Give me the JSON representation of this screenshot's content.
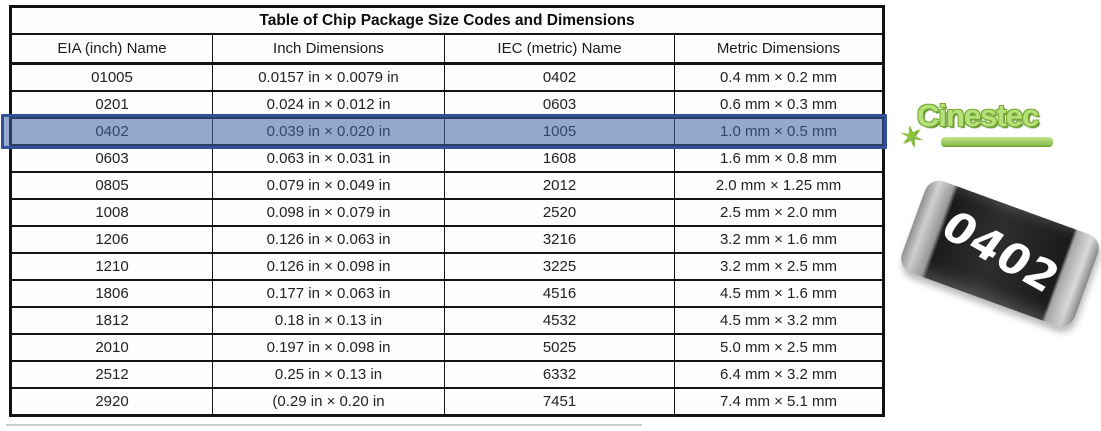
{
  "table": {
    "title": "Table of Chip Package Size Codes and Dimensions",
    "columns": [
      "EIA (inch) Name",
      "Inch Dimensions",
      "IEC (metric) Name",
      "Metric Dimensions"
    ],
    "rows": [
      {
        "eia": "01005",
        "inch": "0.0157 in × 0.0079 in",
        "iec": "0402",
        "metric": "0.4 mm × 0.2 mm"
      },
      {
        "eia": "0201",
        "inch": "0.024 in × 0.012 in",
        "iec": "0603",
        "metric": "0.6 mm × 0.3 mm"
      },
      {
        "eia": "0402",
        "inch": "0.039 in × 0.020 in",
        "iec": "1005",
        "metric": "1.0 mm × 0.5 mm"
      },
      {
        "eia": "0603",
        "inch": "0.063 in × 0.031 in",
        "iec": "1608",
        "metric": "1.6 mm × 0.8 mm"
      },
      {
        "eia": "0805",
        "inch": "0.079 in × 0.049 in",
        "iec": "2012",
        "metric": "2.0 mm × 1.25 mm"
      },
      {
        "eia": "1008",
        "inch": "0.098 in × 0.079 in",
        "iec": "2520",
        "metric": "2.5 mm × 2.0 mm"
      },
      {
        "eia": "1206",
        "inch": "0.126 in × 0.063 in",
        "iec": "3216",
        "metric": "3.2 mm × 1.6 mm"
      },
      {
        "eia": "1210",
        "inch": "0.126 in × 0.098 in",
        "iec": "3225",
        "metric": "3.2 mm × 2.5 mm"
      },
      {
        "eia": "1806",
        "inch": "0.177 in × 0.063 in",
        "iec": "4516",
        "metric": "4.5 mm × 1.6 mm"
      },
      {
        "eia": "1812",
        "inch": "0.18 in × 0.13 in",
        "iec": "4532",
        "metric": "4.5 mm × 3.2 mm"
      },
      {
        "eia": "2010",
        "inch": "0.197 in × 0.098 in",
        "iec": "5025",
        "metric": "5.0 mm × 2.5 mm"
      },
      {
        "eia": "2512",
        "inch": "0.25 in × 0.13 in",
        "iec": "6332",
        "metric": "6.4 mm × 3.2 mm"
      },
      {
        "eia": "2920",
        "inch": "(0.29 in × 0.20 in",
        "iec": "7451",
        "metric": "7.4 mm × 5.1 mm"
      }
    ],
    "highlighted_row": "0402"
  },
  "highlight": {
    "fill": "rgba(62,98,168,0.55)",
    "border_color": "#33519a"
  },
  "logo": {
    "text": "Cinestec",
    "leaf_glyph": "✶",
    "color": "#8cc63f"
  },
  "chip": {
    "label": "0402",
    "body_color": "#2e2e2e",
    "cap_color": "#c9c9c9"
  }
}
